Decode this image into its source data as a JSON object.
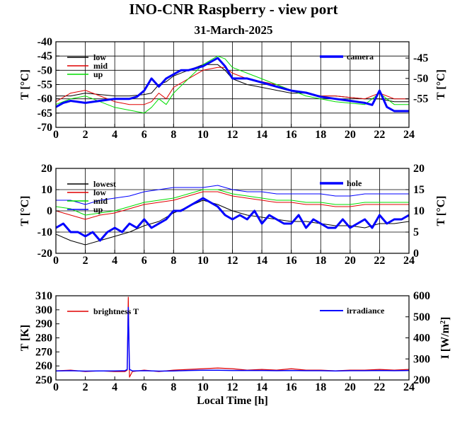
{
  "title": "INO-CNR Raspberry - view port",
  "subtitle": "31-March-2025",
  "colors": {
    "black": "#000000",
    "red": "#e00000",
    "green": "#00dd00",
    "blue": "#0000ff"
  },
  "chart_data": [
    {
      "type": "line",
      "x_ticks": [
        "0",
        "2",
        "4",
        "6",
        "8",
        "10",
        "12",
        "14",
        "16",
        "18",
        "20",
        "22",
        "24"
      ],
      "xlim": [
        0,
        24
      ],
      "ylabel": "T [°C]",
      "ylim": [
        -70,
        -40
      ],
      "y_ticks": [
        "-40",
        "-45",
        "-50",
        "-55",
        "-60",
        "-65",
        "-70"
      ],
      "ylabel_right": "T [°C]",
      "ylim_right": [
        -62,
        -41
      ],
      "y_ticks_right": [
        "-45",
        "-50",
        "-55"
      ],
      "grid": true,
      "legend_left": [
        "low",
        "mid",
        "up"
      ],
      "legend_right": [
        "camera"
      ],
      "series": [
        {
          "name": "low",
          "axis": "left",
          "color": "black",
          "width": 1,
          "x": [
            0,
            1,
            2,
            3,
            4,
            5,
            6,
            6.5,
            7,
            7.5,
            8,
            9,
            10,
            11,
            11.5,
            12,
            13,
            14,
            15,
            16,
            17,
            18,
            19,
            20,
            21,
            22,
            23,
            24
          ],
          "y": [
            -59,
            -59,
            -58,
            -58.5,
            -59,
            -59,
            -58.5,
            -58,
            -55,
            -54,
            -52,
            -50,
            -48,
            -48,
            -50,
            -53,
            -55,
            -56,
            -57,
            -58,
            -58,
            -59,
            -59,
            -59.5,
            -60,
            -60,
            -61,
            -61
          ]
        },
        {
          "name": "mid",
          "axis": "left",
          "color": "red",
          "width": 1,
          "x": [
            0,
            1,
            2,
            3,
            4,
            5,
            6,
            6.5,
            7,
            7.5,
            8,
            9,
            10,
            11,
            11.5,
            12,
            13,
            14,
            15,
            16,
            17,
            18,
            19,
            20,
            21,
            22,
            23,
            24
          ],
          "y": [
            -61,
            -58,
            -57,
            -59,
            -61,
            -62,
            -62,
            -61,
            -58,
            -60,
            -56,
            -53,
            -50,
            -49,
            -49,
            -51,
            -53,
            -54,
            -55,
            -57,
            -58,
            -59,
            -59,
            -59.5,
            -60,
            -58,
            -60,
            -60
          ]
        },
        {
          "name": "up",
          "axis": "left",
          "color": "green",
          "width": 1,
          "x": [
            0,
            1,
            2,
            3,
            4,
            5,
            6,
            6.5,
            7,
            7.5,
            8,
            9,
            10,
            11,
            11.5,
            12,
            13,
            14,
            15,
            16,
            17,
            18,
            19,
            20,
            21,
            22,
            23,
            24
          ],
          "y": [
            -62,
            -60,
            -59,
            -61,
            -63,
            -64,
            -65,
            -63,
            -60,
            -62,
            -58,
            -53,
            -48,
            -45,
            -46,
            -49,
            -51,
            -53,
            -55,
            -57,
            -59,
            -60,
            -61,
            -61.5,
            -62,
            -58,
            -62,
            -62
          ]
        },
        {
          "name": "camera",
          "axis": "right",
          "color": "blue",
          "width": 3,
          "x": [
            0,
            0.5,
            1,
            2,
            3,
            4,
            5,
            5.5,
            6,
            6.5,
            7,
            7.5,
            8,
            8.5,
            9,
            10,
            11,
            11.5,
            12,
            13,
            14,
            15,
            16,
            17,
            18,
            19,
            20,
            21,
            21.5,
            22,
            22.5,
            23,
            24
          ],
          "y": [
            -57,
            -56,
            -55.5,
            -56,
            -55.5,
            -55,
            -55,
            -54.5,
            -53,
            -50,
            -52,
            -50,
            -49,
            -48,
            -48,
            -47,
            -45,
            -47,
            -50,
            -50,
            -51,
            -52,
            -53,
            -53.5,
            -54.5,
            -55,
            -55.5,
            -56,
            -56.5,
            -53,
            -57,
            -58,
            -58
          ]
        }
      ]
    },
    {
      "type": "line",
      "x_ticks": [
        "0",
        "2",
        "4",
        "6",
        "8",
        "10",
        "12",
        "14",
        "16",
        "18",
        "20",
        "22",
        "24"
      ],
      "xlim": [
        0,
        24
      ],
      "ylabel": "T [°C]",
      "ylim": [
        -20,
        20
      ],
      "y_ticks": [
        "20",
        "10",
        "0",
        "-10",
        "-20"
      ],
      "ylabel_right": "T [°C]",
      "ylim_right": [
        0,
        20
      ],
      "y_ticks_right": [
        "20",
        "15",
        "10",
        "5",
        "0"
      ],
      "grid": true,
      "legend_left": [
        "lowest",
        "low",
        "mid",
        "up"
      ],
      "legend_right": [
        "hole"
      ],
      "series": [
        {
          "name": "lowest",
          "axis": "left",
          "color": "black",
          "width": 1,
          "x": [
            0,
            1,
            2,
            3,
            4,
            5,
            6,
            7,
            8,
            9,
            10,
            11,
            12,
            13,
            14,
            15,
            16,
            17,
            18,
            19,
            20,
            21,
            22,
            23,
            24
          ],
          "y": [
            -11,
            -14,
            -16,
            -14,
            -12,
            -10,
            -7,
            -5,
            -1,
            2,
            5,
            3,
            0,
            -2,
            -3,
            -4,
            -5,
            -5,
            -6,
            -7,
            -7,
            -8,
            -6,
            -6,
            -5
          ]
        },
        {
          "name": "low",
          "axis": "left",
          "color": "red",
          "width": 1,
          "x": [
            0,
            1,
            2,
            3,
            4,
            5,
            6,
            7,
            8,
            9,
            10,
            11,
            12,
            13,
            14,
            15,
            16,
            17,
            18,
            19,
            20,
            21,
            22,
            23,
            24
          ],
          "y": [
            0,
            -2,
            -4,
            -2,
            -1,
            1,
            3,
            4,
            5,
            7,
            9,
            9,
            7,
            6,
            5,
            4,
            4,
            3,
            3,
            2,
            2,
            3,
            3,
            3,
            3
          ]
        },
        {
          "name": "mid",
          "axis": "left",
          "color": "green",
          "width": 1,
          "x": [
            0,
            1,
            2,
            3,
            4,
            5,
            6,
            7,
            8,
            9,
            10,
            11,
            12,
            13,
            14,
            15,
            16,
            17,
            18,
            19,
            20,
            21,
            22,
            23,
            24
          ],
          "y": [
            2,
            1,
            -2,
            -1,
            0,
            2,
            4,
            5,
            6,
            8,
            10,
            10,
            8,
            7,
            6,
            5,
            5,
            4,
            4,
            3,
            3,
            4,
            4,
            4,
            4
          ]
        },
        {
          "name": "up",
          "axis": "left",
          "color": "blue",
          "width": 1,
          "x": [
            0,
            1,
            2,
            3,
            4,
            5,
            6,
            7,
            8,
            9,
            10,
            11,
            12,
            13,
            14,
            15,
            16,
            17,
            18,
            19,
            20,
            21,
            22,
            23,
            24
          ],
          "y": [
            5,
            5,
            3,
            5,
            6,
            7,
            9,
            10,
            11,
            11,
            11,
            12,
            10,
            9,
            9,
            8,
            8,
            8,
            8,
            7,
            7,
            8,
            8,
            8,
            8
          ]
        },
        {
          "name": "hole",
          "axis": "right",
          "color": "blue",
          "width": 3,
          "x": [
            0,
            0.5,
            1,
            1.5,
            2,
            2.5,
            3,
            3.5,
            4,
            4.5,
            5,
            5.5,
            6,
            6.5,
            7,
            7.5,
            8,
            8.5,
            9,
            9.5,
            10,
            10.5,
            11,
            11.5,
            12,
            12.5,
            13,
            13.5,
            14,
            14.5,
            15,
            15.5,
            16,
            16.5,
            17,
            17.5,
            18,
            18.5,
            19,
            19.5,
            20,
            20.5,
            21,
            21.5,
            22,
            22.5,
            23,
            23.5,
            24
          ],
          "y": [
            6,
            7,
            5,
            5,
            4,
            5,
            3,
            5,
            6,
            5,
            7,
            6,
            8,
            6,
            7,
            8,
            10,
            10,
            11,
            12,
            13,
            12,
            11,
            9,
            8,
            9,
            8,
            10,
            7,
            9,
            8,
            7,
            7,
            9,
            6,
            8,
            7,
            6,
            6,
            8,
            6,
            7,
            8,
            6,
            9,
            7,
            8,
            8,
            9
          ]
        }
      ]
    },
    {
      "type": "line",
      "x_ticks": [
        "0",
        "2",
        "4",
        "6",
        "8",
        "10",
        "12",
        "14",
        "16",
        "18",
        "20",
        "22",
        "24"
      ],
      "xlim": [
        0,
        24
      ],
      "xlabel": "Local Time [h]",
      "ylabel": "T [K]",
      "ylim": [
        250,
        310
      ],
      "y_ticks": [
        "310",
        "300",
        "290",
        "280",
        "270",
        "260",
        "250"
      ],
      "ylabel_right": "I [W/m",
      "ylabel_right_sup": "2",
      "ylabel_right_end": "]",
      "ylim_right": [
        200,
        600
      ],
      "y_ticks_right": [
        "600",
        "500",
        "400",
        "300",
        "200"
      ],
      "grid": false,
      "legend_left": [
        "brightness T"
      ],
      "legend_right": [
        "irradiance"
      ],
      "series": [
        {
          "name": "brightness T",
          "axis": "left",
          "color": "red",
          "width": 1.2,
          "x": [
            0,
            1,
            2,
            3,
            4,
            4.7,
            4.85,
            4.92,
            5.0,
            5.2,
            6,
            7,
            8,
            9,
            10,
            11,
            12,
            13,
            14,
            15,
            16,
            17,
            18,
            19,
            20,
            21,
            22,
            23,
            24
          ],
          "y": [
            256.5,
            257,
            256,
            256.5,
            256,
            256,
            257,
            309,
            252,
            256,
            257,
            256,
            257,
            257.5,
            258,
            258.5,
            258,
            257,
            257.5,
            257,
            258,
            257,
            257,
            256.5,
            257,
            257,
            257.5,
            257,
            257.5
          ]
        },
        {
          "name": "irradiance",
          "axis": "right",
          "color": "blue",
          "width": 1.5,
          "x": [
            0,
            1,
            2,
            3,
            4,
            4.7,
            4.85,
            4.92,
            5.0,
            5.2,
            6,
            7,
            8,
            9,
            10,
            11,
            12,
            13,
            14,
            15,
            16,
            17,
            18,
            19,
            20,
            21,
            22,
            23,
            24
          ],
          "y": [
            243,
            244,
            242,
            243,
            243,
            244,
            250,
            545,
            250,
            243,
            244,
            242,
            243,
            245,
            246,
            246,
            245,
            245,
            245,
            244,
            245,
            244,
            244,
            243,
            244,
            244,
            245,
            244,
            245
          ]
        }
      ]
    }
  ]
}
